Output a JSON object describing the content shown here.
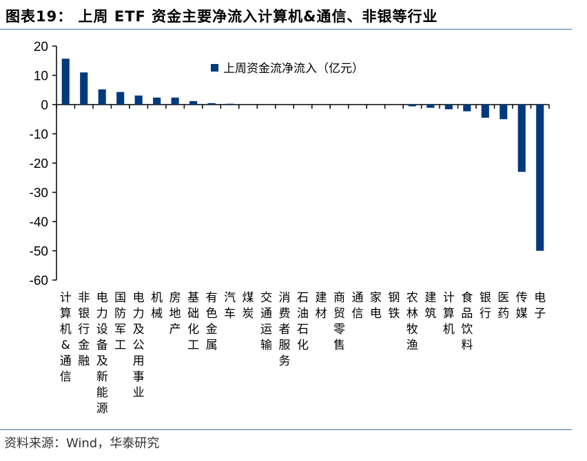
{
  "title": "图表19：  上周 ETF 资金主要净流入计算机&通信、非银等行业",
  "source": "资料来源：Wind，华泰研究",
  "chart_data": {
    "type": "bar",
    "title": "",
    "xlabel": "",
    "ylabel": "",
    "ylim": [
      -60,
      20
    ],
    "yticks": [
      20,
      10,
      0,
      -10,
      -20,
      -30,
      -40,
      -50,
      -60
    ],
    "grid": false,
    "legend_position": "top-right",
    "color": "#003a7c",
    "categories": [
      "计算机&通信",
      "非银行金融",
      "电力设备及新能源",
      "国防军工",
      "电力及公用事业",
      "机械",
      "房地产",
      "基础化工",
      "有色金属",
      "汽车",
      "煤炭",
      "交通运输",
      "消费者服务",
      "石油石化",
      "建材",
      "商贸零售",
      "通信",
      "家电",
      "钢铁",
      "农林牧渔",
      "建筑",
      "计算机",
      "食品饮料",
      "银行",
      "医药",
      "传媒",
      "电子"
    ],
    "series": [
      {
        "name": "上周资金流净流入（亿元）",
        "values": [
          15.7,
          11.0,
          5.2,
          4.3,
          3.1,
          2.4,
          2.4,
          1.2,
          0.5,
          0.3,
          0,
          0,
          0,
          0,
          0,
          0,
          0,
          0,
          0,
          -0.6,
          -1.1,
          -1.6,
          -2.3,
          -4.5,
          -5.0,
          -23.0,
          -50.0
        ]
      }
    ]
  }
}
